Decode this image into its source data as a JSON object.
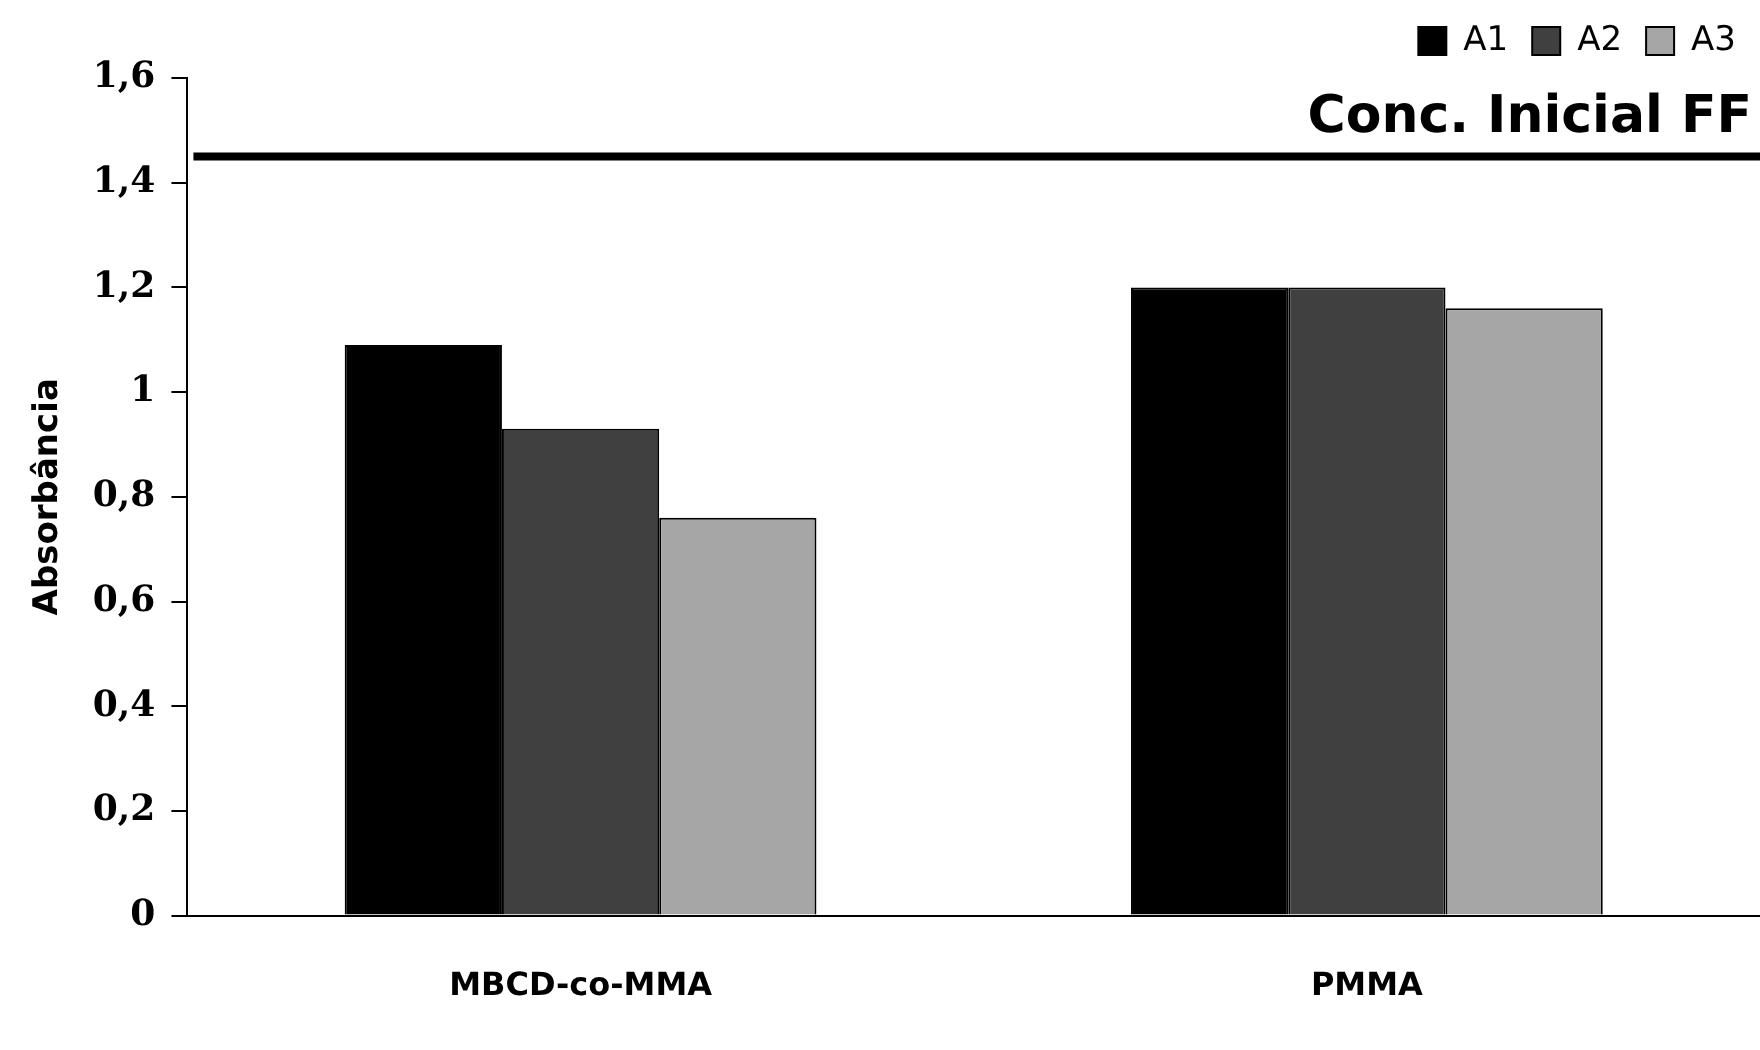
{
  "chart_data": {
    "type": "bar",
    "ylabel": "Absorbância",
    "categories": [
      "MBCD-co-MMA",
      "PMMA"
    ],
    "series": [
      {
        "name": "A1",
        "color": "#000000",
        "values": [
          1.09,
          1.2
        ]
      },
      {
        "name": "A2",
        "color": "#404040",
        "values": [
          0.93,
          1.2
        ]
      },
      {
        "name": "A3",
        "color": "#a6a6a6",
        "values": [
          0.76,
          1.16
        ]
      }
    ],
    "ylim": [
      0,
      1.6
    ],
    "yticks": [
      {
        "value": 0,
        "label": "0"
      },
      {
        "value": 0.2,
        "label": "0,2"
      },
      {
        "value": 0.4,
        "label": "0,4"
      },
      {
        "value": 0.6,
        "label": "0,6"
      },
      {
        "value": 0.8,
        "label": "0,8"
      },
      {
        "value": 1,
        "label": "1"
      },
      {
        "value": 1.2,
        "label": "1,2"
      },
      {
        "value": 1.4,
        "label": "1,4"
      },
      {
        "value": 1.6,
        "label": "1,6"
      }
    ],
    "ref_lines": [
      {
        "axis": "y",
        "value": 1.45,
        "label": "Conc. Inicial FF",
        "color": "#000000"
      }
    ],
    "grid": false,
    "legend": "top right"
  }
}
